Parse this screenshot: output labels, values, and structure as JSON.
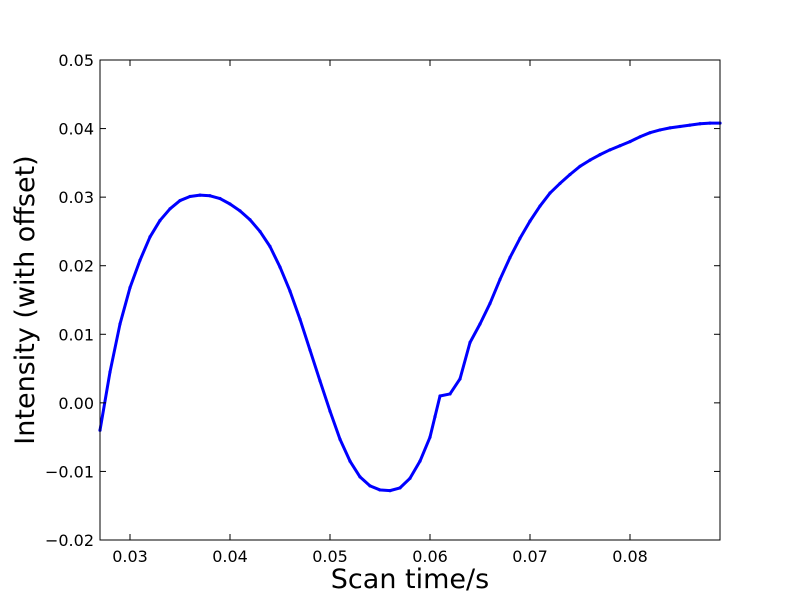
{
  "chart_data": {
    "type": "line",
    "title": "",
    "xlabel": "Scan time/s",
    "ylabel": "Intensity (with offset)",
    "xlim": [
      0.027,
      0.089
    ],
    "ylim": [
      -0.02,
      0.05
    ],
    "x_ticks": [
      0.03,
      0.04,
      0.05,
      0.06,
      0.07,
      0.08
    ],
    "x_tick_labels": [
      "0.03",
      "0.04",
      "0.05",
      "0.06",
      "0.07",
      "0.08"
    ],
    "y_ticks": [
      -0.02,
      -0.01,
      0.0,
      0.01,
      0.02,
      0.03,
      0.04,
      0.05
    ],
    "y_tick_labels": [
      "−0.02",
      "−0.01",
      "0.00",
      "0.01",
      "0.02",
      "0.03",
      "0.04",
      "0.05"
    ],
    "grid": false,
    "legend": "none",
    "series": [
      {
        "color": "#0000ff",
        "x": [
          0.027,
          0.028,
          0.029,
          0.03,
          0.031,
          0.032,
          0.033,
          0.034,
          0.035,
          0.036,
          0.037,
          0.038,
          0.039,
          0.04,
          0.041,
          0.042,
          0.043,
          0.044,
          0.045,
          0.046,
          0.047,
          0.048,
          0.049,
          0.05,
          0.051,
          0.052,
          0.053,
          0.054,
          0.055,
          0.056,
          0.057,
          0.058,
          0.059,
          0.06,
          0.0605,
          0.061,
          0.062,
          0.063,
          0.064,
          0.065,
          0.066,
          0.067,
          0.068,
          0.069,
          0.07,
          0.071,
          0.072,
          0.073,
          0.074,
          0.075,
          0.076,
          0.077,
          0.078,
          0.079,
          0.08,
          0.081,
          0.082,
          0.083,
          0.084,
          0.085,
          0.086,
          0.087,
          0.088,
          0.089
        ],
        "y": [
          -0.004,
          0.0045,
          0.0115,
          0.0168,
          0.0208,
          0.0242,
          0.0266,
          0.0283,
          0.0295,
          0.0301,
          0.0303,
          0.0302,
          0.0298,
          0.029,
          0.028,
          0.0267,
          0.025,
          0.0228,
          0.0198,
          0.0163,
          0.0122,
          0.0077,
          0.0032,
          -0.0012,
          -0.0053,
          -0.0085,
          -0.0108,
          -0.0121,
          -0.0127,
          -0.0128,
          -0.0124,
          -0.011,
          -0.0085,
          -0.005,
          -0.002,
          0.001,
          0.0013,
          0.0035,
          0.0088,
          0.0115,
          0.0145,
          0.018,
          0.0212,
          0.024,
          0.0265,
          0.0287,
          0.0306,
          0.032,
          0.0333,
          0.0345,
          0.0354,
          0.0362,
          0.0369,
          0.0375,
          0.0381,
          0.0388,
          0.0394,
          0.0398,
          0.0401,
          0.0403,
          0.0405,
          0.0407,
          0.0408,
          0.0408
        ]
      }
    ]
  }
}
